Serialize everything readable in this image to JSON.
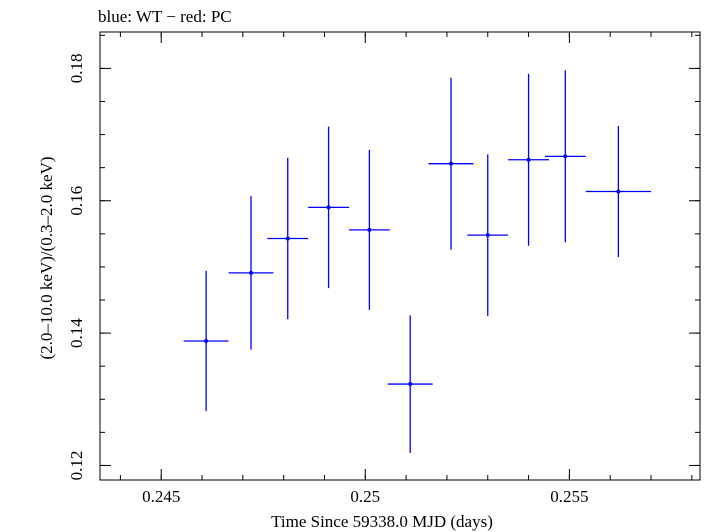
{
  "chart_data": {
    "type": "scatter",
    "title": "blue: WT − red: PC",
    "xlabel": "Time Since 59338.0 MJD (days)",
    "ylabel": "(2.0–10.0 keV)/(0.3–2.0 keV)",
    "xlim": [
      0.2435,
      0.2582
    ],
    "ylim": [
      0.1178,
      0.1855
    ],
    "x_ticks": [
      0.245,
      0.25,
      0.255
    ],
    "x_tick_labels": [
      "0.245",
      "0.25",
      "0.255"
    ],
    "y_ticks": [
      0.12,
      0.14,
      0.16,
      0.18
    ],
    "y_tick_labels": [
      "0.12",
      "0.14",
      "0.16",
      "0.18"
    ],
    "grid": false,
    "series": [
      {
        "color": "#0000ff",
        "points": [
          {
            "x": 0.2461,
            "xerr": 0.00055,
            "y": 0.1388,
            "yerr": 0.0106
          },
          {
            "x": 0.2472,
            "xerr": 0.00055,
            "y": 0.1491,
            "yerr": 0.0116
          },
          {
            "x": 0.2481,
            "xerr": 0.0005,
            "y": 0.1543,
            "yerr": 0.0122
          },
          {
            "x": 0.2491,
            "xerr": 0.0005,
            "y": 0.159,
            "yerr": 0.0122
          },
          {
            "x": 0.2501,
            "xerr": 0.0005,
            "y": 0.1556,
            "yerr": 0.0121
          },
          {
            "x": 0.2511,
            "xerr": 0.00055,
            "y": 0.1323,
            "yerr": 0.0104
          },
          {
            "x": 0.2521,
            "xerr": 0.00055,
            "y": 0.1656,
            "yerr": 0.013
          },
          {
            "x": 0.253,
            "xerr": 0.0005,
            "y": 0.1548,
            "yerr": 0.0122
          },
          {
            "x": 0.254,
            "xerr": 0.0005,
            "y": 0.1662,
            "yerr": 0.013
          },
          {
            "x": 0.2549,
            "xerr": 0.0005,
            "y": 0.1667,
            "yerr": 0.013
          },
          {
            "x": 0.2562,
            "xerr": 0.0008,
            "y": 0.1614,
            "yerr": 0.0099
          }
        ]
      }
    ]
  }
}
